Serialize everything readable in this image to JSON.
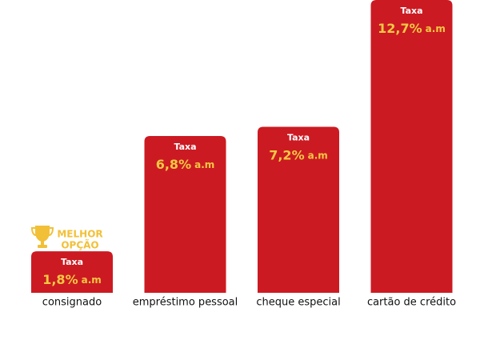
{
  "chart_data": {
    "type": "bar",
    "categories": [
      "consignado",
      "empréstimo pessoal",
      "cheque especial",
      "cartão de crédito"
    ],
    "values": [
      1.8,
      6.8,
      7.2,
      12.7
    ],
    "value_labels": [
      "1,8%",
      "6,8%",
      "7,2%",
      "12,7%"
    ],
    "rate_unit": "a.m",
    "bar_label": "Taxa",
    "badge_lines": [
      "MELHOR",
      "OPÇÃO"
    ],
    "color": "#cc1a22"
  }
}
